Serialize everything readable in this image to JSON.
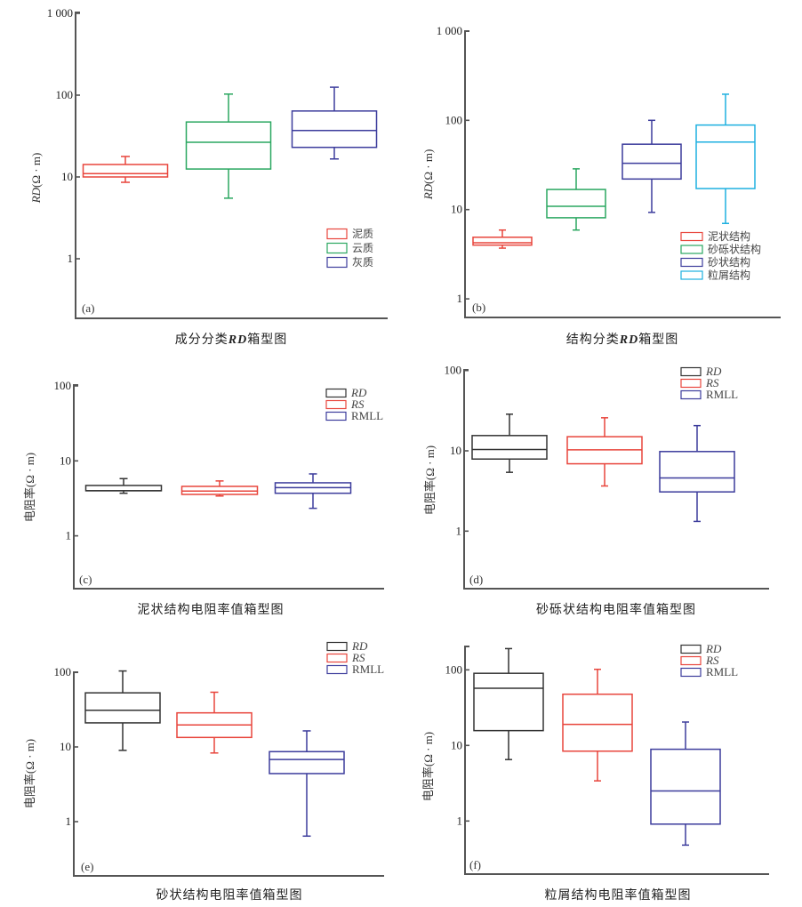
{
  "chart_data": [
    {
      "id": "a",
      "type": "box",
      "panel_tag": "(a)",
      "title": "成分分类RD箱型图",
      "title_parts": [
        "成分分类",
        "RD",
        "箱型图"
      ],
      "ylabel": "RD(Ω·m)",
      "ylabel_parts": [
        "RD",
        "(Ω · m)"
      ],
      "yscale": "log",
      "ylim": [
        0.2,
        1000
      ],
      "yticks": [
        1,
        10,
        100,
        1000
      ],
      "ytick_labels": [
        "1",
        "10",
        "100",
        "1 000"
      ],
      "legend_placement": "bottom-right",
      "series": [
        {
          "name": "泥质",
          "color": "#e8453c",
          "min": 8.6,
          "q1": 10.0,
          "median": 11.0,
          "q3": 14.2,
          "max": 17.8
        },
        {
          "name": "云质",
          "color": "#2aa760",
          "min": 5.5,
          "q1": 12.5,
          "median": 26.5,
          "q3": 47,
          "max": 103
        },
        {
          "name": "灰质",
          "color": "#3c3c9c",
          "min": 16.6,
          "q1": 23,
          "median": 37,
          "q3": 64,
          "max": 125
        }
      ]
    },
    {
      "id": "b",
      "type": "box",
      "panel_tag": "(b)",
      "title": "结构分类RD箱型图",
      "title_parts": [
        "结构分类",
        "RD",
        "箱型图"
      ],
      "ylabel": "RD(Ω·m)",
      "ylabel_parts": [
        "RD",
        "(Ω · m)"
      ],
      "yscale": "log",
      "ylim": [
        0.65,
        1000
      ],
      "yticks": [
        1,
        10,
        100,
        1000
      ],
      "ytick_labels": [
        "1",
        "10",
        "100",
        "1 000"
      ],
      "legend_placement": "bottom-right",
      "series": [
        {
          "name": "泥状结构",
          "color": "#e8453c",
          "min": 3.7,
          "q1": 4.0,
          "median": 4.25,
          "q3": 4.9,
          "max": 5.9
        },
        {
          "name": "砂砾状结构",
          "color": "#2aa760",
          "min": 5.9,
          "q1": 8.1,
          "median": 10.9,
          "q3": 16.8,
          "max": 28.6
        },
        {
          "name": "砂状结构",
          "color": "#3c3c9c",
          "min": 9.3,
          "q1": 22,
          "median": 33,
          "q3": 54,
          "max": 100
        },
        {
          "name": "粒屑结构",
          "color": "#1fb0e0",
          "min": 7.0,
          "q1": 17.2,
          "median": 57,
          "q3": 88.5,
          "max": 196
        }
      ]
    },
    {
      "id": "c",
      "type": "box",
      "panel_tag": "(c)",
      "title": "泥状结构电阻率值箱型图",
      "ylabel": "电阻率(Ω·m)",
      "ylabel_parts": [
        "",
        "电阻率(Ω · m)"
      ],
      "yscale": "log",
      "ylim": [
        0.2,
        100
      ],
      "yticks": [
        1,
        10,
        100
      ],
      "ytick_labels": [
        "1",
        "10",
        "100"
      ],
      "legend_placement": "top-right",
      "series": [
        {
          "name": "RD",
          "italic": true,
          "color": "#333333",
          "min": 3.7,
          "q1": 4.0,
          "median": 4.0,
          "q3": 4.7,
          "max": 5.8
        },
        {
          "name": "RS",
          "italic": true,
          "color": "#e8453c",
          "min": 3.4,
          "q1": 3.57,
          "median": 3.95,
          "q3": 4.57,
          "max": 5.4
        },
        {
          "name": "RMLL",
          "italic": false,
          "color": "#3c3c9c",
          "min": 2.33,
          "q1": 3.7,
          "median": 4.4,
          "q3": 5.1,
          "max": 6.7
        }
      ]
    },
    {
      "id": "d",
      "type": "box",
      "panel_tag": "(d)",
      "title": "砂砾状结构电阻率值箱型图",
      "ylabel": "电阻率(Ω·m)",
      "ylabel_parts": [
        "",
        "电阻率(Ω · m)"
      ],
      "yscale": "log",
      "ylim": [
        0.2,
        100
      ],
      "yticks": [
        1,
        10,
        100
      ],
      "ytick_labels": [
        "1",
        "10",
        "100"
      ],
      "legend_placement": "top-right",
      "series": [
        {
          "name": "RD",
          "italic": true,
          "color": "#333333",
          "min": 5.4,
          "q1": 7.9,
          "median": 10.4,
          "q3": 15.5,
          "max": 28.6
        },
        {
          "name": "RS",
          "italic": true,
          "color": "#e8453c",
          "min": 3.65,
          "q1": 6.9,
          "median": 10.3,
          "q3": 15.0,
          "max": 25.8
        },
        {
          "name": "RMLL",
          "italic": false,
          "color": "#3c3c9c",
          "min": 1.32,
          "q1": 3.08,
          "median": 4.6,
          "q3": 9.8,
          "max": 20.6
        }
      ]
    },
    {
      "id": "e",
      "type": "box",
      "panel_tag": "(e)",
      "title": "砂状结构电阻率值箱型图",
      "ylabel": "电阻率(Ω·m)",
      "ylabel_parts": [
        "",
        "电阻率(Ω · m)"
      ],
      "yscale": "log",
      "ylim": [
        0.2,
        100
      ],
      "yticks": [
        1,
        10,
        100
      ],
      "ytick_labels": [
        "1",
        "10",
        "100"
      ],
      "legend_placement": "top-right",
      "series": [
        {
          "name": "RD",
          "italic": true,
          "color": "#333333",
          "min": 9.0,
          "q1": 21,
          "median": 31,
          "q3": 53,
          "max": 104
        },
        {
          "name": "RS",
          "italic": true,
          "color": "#e8453c",
          "min": 8.3,
          "q1": 13.4,
          "median": 19.7,
          "q3": 28.6,
          "max": 54
        },
        {
          "name": "RMLL",
          "italic": false,
          "color": "#3c3c9c",
          "min": 0.64,
          "q1": 4.4,
          "median": 6.8,
          "q3": 8.65,
          "max": 16.4
        }
      ]
    },
    {
      "id": "f",
      "type": "box",
      "panel_tag": "(f)",
      "title": "粒屑结构电阻率值箱型图",
      "ylabel": "电阻率(Ω·m)",
      "ylabel_parts": [
        "",
        "电阻率(Ω · m)"
      ],
      "yscale": "log",
      "ylim": [
        0.2,
        200
      ],
      "yticks": [
        1,
        10,
        100
      ],
      "ytick_labels": [
        "1",
        "10",
        "100"
      ],
      "legend_placement": "top-right",
      "series": [
        {
          "name": "RD",
          "italic": true,
          "color": "#333333",
          "min": 6.5,
          "q1": 15.7,
          "median": 57,
          "q3": 90,
          "max": 191
        },
        {
          "name": "RS",
          "italic": true,
          "color": "#e8453c",
          "min": 3.4,
          "q1": 8.4,
          "median": 19,
          "q3": 47.6,
          "max": 101.6
        },
        {
          "name": "RMLL",
          "italic": false,
          "color": "#3c3c9c",
          "min": 0.48,
          "q1": 0.91,
          "median": 2.5,
          "q3": 8.9,
          "max": 20.4
        }
      ]
    }
  ]
}
